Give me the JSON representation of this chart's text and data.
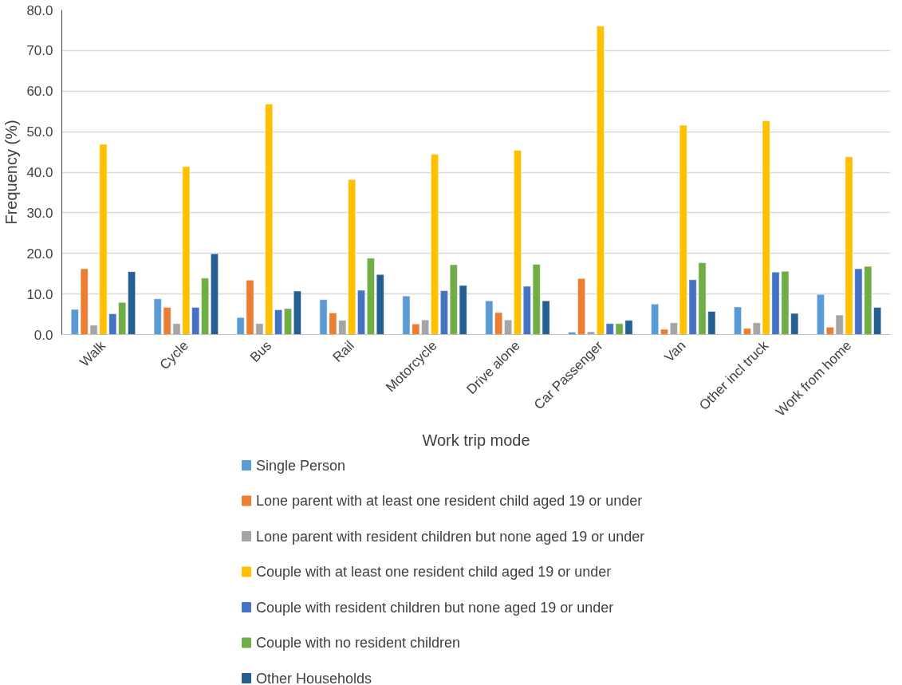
{
  "chart_data": {
    "type": "bar",
    "xlabel": "Work trip mode",
    "ylabel": "Frequency (%)",
    "categories": [
      "Walk",
      "Cycle",
      "Bus",
      "Rail",
      "Motorcycle",
      "Drive alone",
      "Car Passenger",
      "Van",
      "Other incl truck",
      "Work from home"
    ],
    "series": [
      {
        "name": "Single Person",
        "color": "#5b9bd5",
        "values": [
          6.2,
          8.8,
          4.2,
          8.6,
          9.5,
          8.3,
          0.6,
          7.5,
          6.8,
          9.9
        ]
      },
      {
        "name": "Lone parent with at least one resident child aged 19 or under",
        "color": "#ed7d31",
        "values": [
          16.2,
          6.7,
          13.4,
          5.3,
          2.6,
          5.4,
          13.8,
          1.3,
          1.5,
          1.8
        ]
      },
      {
        "name": "Lone parent with resident children but none aged 19 or under",
        "color": "#a5a5a5",
        "values": [
          2.3,
          2.7,
          2.7,
          3.5,
          3.6,
          3.6,
          0.7,
          2.9,
          2.9,
          4.8
        ]
      },
      {
        "name": "Couple with at least one resident child aged 19 or under",
        "color": "#ffc000",
        "values": [
          46.9,
          41.4,
          56.8,
          38.2,
          44.4,
          45.4,
          76.0,
          51.6,
          52.7,
          43.8
        ]
      },
      {
        "name": "Couple with resident children but none aged 19 or under",
        "color": "#4472c4",
        "values": [
          5.1,
          6.7,
          6.1,
          10.9,
          10.8,
          11.9,
          2.7,
          13.5,
          15.4,
          16.2
        ]
      },
      {
        "name": "Couple with no resident children",
        "color": "#70ad47",
        "values": [
          7.9,
          13.9,
          6.4,
          18.8,
          17.2,
          17.3,
          2.7,
          17.7,
          15.6,
          16.8
        ]
      },
      {
        "name": "Other Households",
        "color": "#255e91",
        "values": [
          15.5,
          19.9,
          10.7,
          14.8,
          12.1,
          8.3,
          3.5,
          5.7,
          5.2,
          6.7
        ]
      }
    ],
    "ylim": [
      0,
      80
    ],
    "yticks": [
      {
        "value": 0,
        "label": "0.0"
      },
      {
        "value": 10,
        "label": "10.0"
      },
      {
        "value": 20,
        "label": "20.0"
      },
      {
        "value": 30,
        "label": "30.0"
      },
      {
        "value": 40,
        "label": "40.0"
      },
      {
        "value": 50,
        "label": "50.0"
      },
      {
        "value": 60,
        "label": "60.0"
      },
      {
        "value": 70,
        "label": "70.0"
      },
      {
        "value": 80,
        "label": "80.0"
      }
    ],
    "grid": "y",
    "legend": "bottom"
  }
}
